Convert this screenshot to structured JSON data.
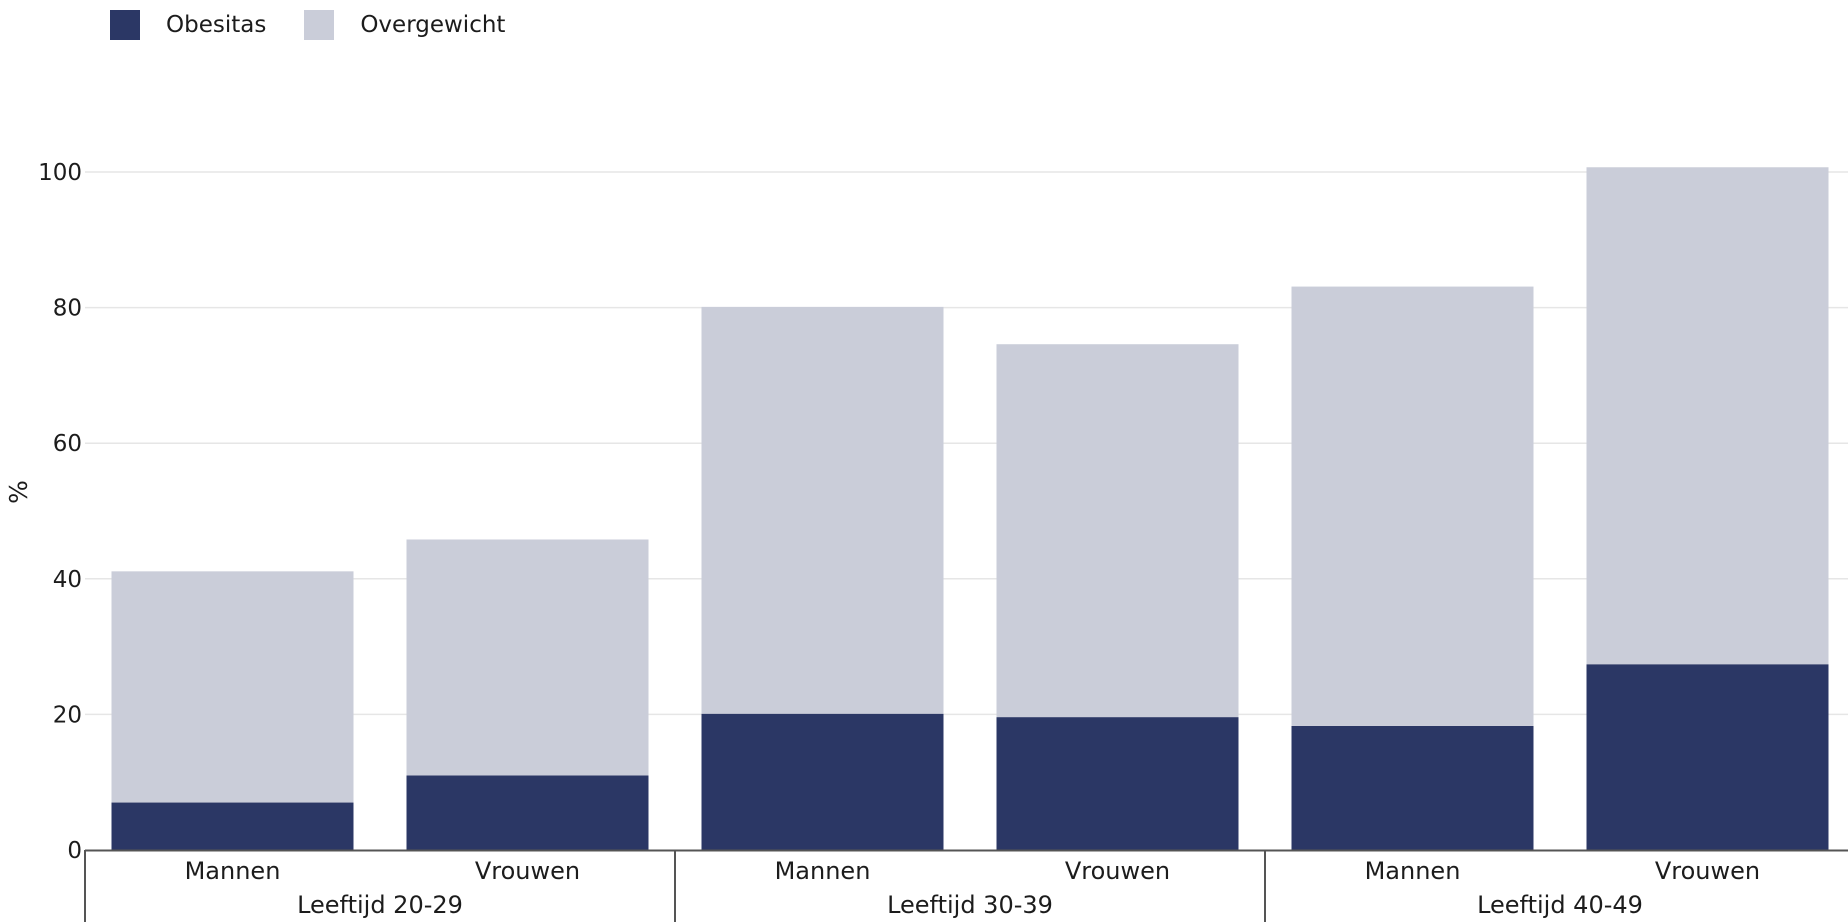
{
  "chart_data": {
    "type": "bar",
    "stacked": true,
    "ylabel": "%",
    "ylim": [
      0,
      100
    ],
    "yticks": [
      0,
      20,
      40,
      60,
      80,
      100
    ],
    "grid": true,
    "legend_position": "top-left",
    "groups": [
      "Leeftijd 20-29",
      "Leeftijd 30-39",
      "Leeftijd 40-49"
    ],
    "subcategories": [
      "Mannen",
      "Vrouwen"
    ],
    "categories": [
      "Mannen",
      "Vrouwen",
      "Mannen",
      "Vrouwen",
      "Mannen",
      "Vrouwen"
    ],
    "series": [
      {
        "name": "Obesitas",
        "color": "#2b3765",
        "values": [
          7.0,
          11.0,
          20.1,
          19.6,
          18.3,
          27.4
        ]
      },
      {
        "name": "Overgewicht",
        "color": "#cacdd9",
        "values": [
          34.1,
          34.8,
          60.0,
          55.0,
          64.8,
          73.3
        ]
      }
    ],
    "axis_color": "#555555",
    "grid_color": "#e6e6e6"
  }
}
